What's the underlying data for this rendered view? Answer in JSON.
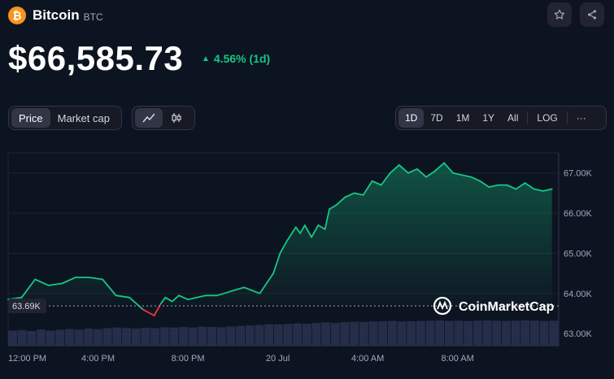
{
  "coin": {
    "logo_letter": "₿",
    "name": "Bitcoin",
    "symbol": "BTC",
    "price": "$66,585.73",
    "change": "4.56% (1d)",
    "change_color": "#16c784"
  },
  "actions": {
    "star_icon": "star-icon",
    "share_icon": "share-icon"
  },
  "toggles": {
    "price_label": "Price",
    "market_cap_label": "Market cap",
    "line_icon": "line-chart-icon",
    "candle_icon": "candlestick-icon"
  },
  "ranges": [
    "1D",
    "7D",
    "1M",
    "1Y",
    "All"
  ],
  "selected_range": "1D",
  "log_label": "LOG",
  "more_label": "···",
  "watermark": "CoinMarketCap",
  "chart_data": {
    "type": "area",
    "y_ticks": [
      "67.00K",
      "66.00K",
      "65.00K",
      "64.00K",
      "63.00K"
    ],
    "y_tick_values": [
      67000,
      66000,
      65000,
      64000,
      63000
    ],
    "ylim": [
      62700,
      67500
    ],
    "x_ticks": [
      "12:00 PM",
      "4:00 PM",
      "8:00 PM",
      "20 Jul",
      "4:00 AM",
      "8:00 AM"
    ],
    "x_tick_hours": [
      0,
      4,
      8,
      12,
      16,
      20
    ],
    "xlim": [
      0,
      24.5
    ],
    "reference_value": 63690,
    "reference_label": "63.69K",
    "line_color_up": "#16c784",
    "line_color_down": "#ea3943",
    "x": [
      0,
      0.6,
      1.2,
      1.8,
      2.4,
      3.0,
      3.6,
      4.2,
      4.8,
      5.4,
      6.0,
      6.5,
      6.8,
      7.0,
      7.3,
      7.6,
      8.0,
      8.4,
      8.8,
      9.3,
      9.9,
      10.5,
      11.2,
      11.8,
      12.1,
      12.4,
      12.8,
      13.0,
      13.2,
      13.5,
      13.8,
      14.1,
      14.3,
      14.6,
      15.0,
      15.4,
      15.8,
      16.2,
      16.6,
      17.0,
      17.4,
      17.8,
      18.2,
      18.6,
      19.0,
      19.4,
      19.8,
      20.2,
      20.6,
      21.0,
      21.4,
      21.8,
      22.2,
      22.6,
      23.0,
      23.4,
      23.8,
      24.2
    ],
    "values": [
      63850,
      63900,
      64350,
      64200,
      64250,
      64400,
      64400,
      64350,
      63950,
      63900,
      63600,
      63450,
      63750,
      63900,
      63800,
      63950,
      63850,
      63900,
      63950,
      63950,
      64050,
      64150,
      64000,
      64500,
      65000,
      65300,
      65650,
      65500,
      65700,
      65400,
      65700,
      65600,
      66100,
      66200,
      66400,
      66500,
      66450,
      66800,
      66700,
      67000,
      67200,
      67000,
      67100,
      66900,
      67050,
      67250,
      67000,
      66950,
      66900,
      66800,
      66650,
      66700,
      66700,
      66600,
      66750,
      66600,
      66550,
      66600
    ],
    "volume": [
      0.6,
      0.62,
      0.58,
      0.64,
      0.6,
      0.63,
      0.66,
      0.64,
      0.68,
      0.66,
      0.7,
      0.72,
      0.7,
      0.68,
      0.71,
      0.7,
      0.73,
      0.72,
      0.74,
      0.72,
      0.75,
      0.74,
      0.73,
      0.76,
      0.78,
      0.8,
      0.82,
      0.85,
      0.84,
      0.86,
      0.88,
      0.87,
      0.9,
      0.92,
      0.9,
      0.93,
      0.95,
      0.94,
      0.96,
      0.97,
      0.98,
      0.96,
      0.97,
      0.98,
      0.99,
      1.0,
      0.98,
      0.99,
      0.98,
      0.99,
      1.0,
      0.99,
      0.98,
      0.99,
      1.0,
      0.99,
      0.98,
      0.99
    ]
  }
}
